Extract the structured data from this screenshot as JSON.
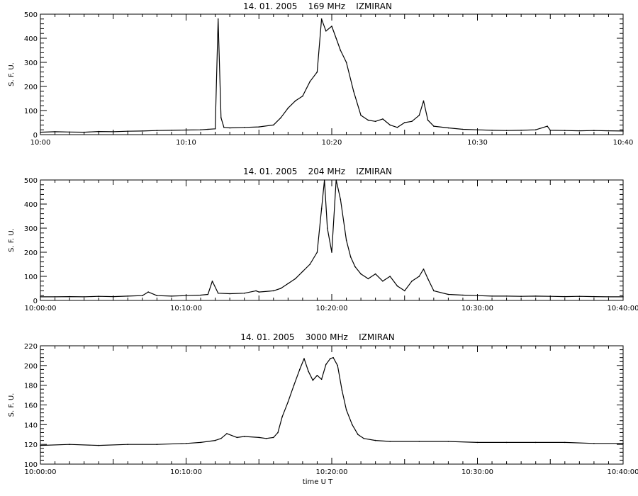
{
  "figure": {
    "background": "#ffffff",
    "line_color": "#000000",
    "xlabel": "time U T"
  },
  "chart_data": [
    {
      "type": "line",
      "title": "14. 01. 2005    169 MHz    IZMIRAN",
      "ylabel": "S. F. U.",
      "xlim": [
        "10:00",
        "10:40"
      ],
      "ylim": [
        0,
        500
      ],
      "yticks": [
        0,
        100,
        200,
        300,
        400,
        500
      ],
      "xticks": [
        "10:00",
        "10:10",
        "10:20",
        "10:30",
        "10:40"
      ],
      "x_unit": "minutes after 10:00 UT",
      "series": [
        {
          "x": [
            0,
            1,
            2,
            3,
            4,
            5,
            6,
            7,
            8,
            9,
            10,
            11,
            11.5,
            12,
            12.2,
            12.4,
            12.6,
            13,
            14,
            15,
            16,
            16.5,
            17,
            17.5,
            18,
            18.5,
            19,
            19.3,
            19.6,
            20,
            20.3,
            20.6,
            21,
            21.5,
            22,
            22.5,
            23,
            23.5,
            24,
            24.5,
            25,
            25.5,
            26,
            26.3,
            26.6,
            27,
            28,
            29,
            30,
            31,
            32,
            33,
            34,
            34.8,
            35,
            36,
            37,
            38,
            39,
            40
          ],
          "y": [
            10,
            12,
            11,
            10,
            13,
            12,
            14,
            15,
            17,
            18,
            19,
            20,
            22,
            24,
            480,
            70,
            30,
            28,
            30,
            32,
            40,
            70,
            110,
            140,
            160,
            220,
            260,
            480,
            430,
            450,
            400,
            350,
            300,
            180,
            80,
            60,
            55,
            65,
            40,
            30,
            50,
            55,
            80,
            140,
            60,
            35,
            28,
            22,
            20,
            18,
            17,
            18,
            20,
            35,
            18,
            17,
            16,
            17,
            16,
            15
          ]
        }
      ]
    },
    {
      "type": "line",
      "title": "14. 01. 2005    204 MHz    IZMIRAN",
      "ylabel": "S. F. U.",
      "xlim": [
        "10:00:00",
        "10:40:00"
      ],
      "ylim": [
        0,
        500
      ],
      "yticks": [
        0,
        100,
        200,
        300,
        400,
        500
      ],
      "xticks": [
        "10:00:00",
        "10:10:00",
        "10:20:00",
        "10:30:00",
        "10:40:00"
      ],
      "x_unit": "minutes after 10:00 UT",
      "series": [
        {
          "x": [
            0,
            1,
            2,
            3,
            4,
            5,
            6,
            7,
            7.4,
            8,
            9,
            10,
            11,
            11.5,
            11.8,
            12.2,
            13,
            14,
            14.8,
            15,
            16,
            16.5,
            17,
            17.5,
            18,
            18.5,
            19,
            19.3,
            19.5,
            19.7,
            20,
            20.3,
            20.6,
            21,
            21.3,
            21.6,
            22,
            22.5,
            23,
            23.5,
            24,
            24.5,
            25,
            25.5,
            26,
            26.3,
            26.6,
            27,
            28,
            29,
            30,
            31,
            32,
            33,
            34,
            35,
            36,
            37,
            38,
            39,
            40
          ],
          "y": [
            15,
            15,
            16,
            15,
            17,
            16,
            18,
            20,
            35,
            20,
            18,
            20,
            22,
            25,
            80,
            30,
            28,
            30,
            40,
            35,
            40,
            50,
            70,
            90,
            120,
            150,
            200,
            380,
            500,
            300,
            200,
            500,
            420,
            250,
            180,
            140,
            110,
            90,
            110,
            80,
            100,
            60,
            40,
            80,
            100,
            130,
            90,
            40,
            25,
            22,
            20,
            18,
            18,
            17,
            18,
            17,
            16,
            17,
            16,
            15,
            15
          ]
        }
      ]
    },
    {
      "type": "line",
      "title": "14. 01. 2005    3000 MHz    IZMIRAN",
      "ylabel": "S. F. U.",
      "xlabel": "time U T",
      "xlim": [
        "10:00:00",
        "10:40:00"
      ],
      "ylim": [
        100,
        220
      ],
      "yticks": [
        100,
        120,
        140,
        160,
        180,
        200,
        220
      ],
      "xticks": [
        "10:00:00",
        "10:10:00",
        "10:20:00",
        "10:30:00",
        "10:40:00"
      ],
      "x_unit": "minutes after 10:00 UT",
      "series": [
        {
          "x": [
            0,
            2,
            4,
            6,
            8,
            10,
            11,
            12,
            12.4,
            12.8,
            13.5,
            14,
            15,
            15.5,
            16,
            16.3,
            16.6,
            17,
            17.4,
            17.8,
            18.1,
            18.4,
            18.7,
            19,
            19.3,
            19.6,
            19.9,
            20.1,
            20.4,
            20.7,
            21,
            21.4,
            21.8,
            22.2,
            23,
            24,
            26,
            28,
            30,
            32,
            34,
            36,
            38,
            40
          ],
          "y": [
            119,
            120,
            119,
            120,
            120,
            121,
            122,
            124,
            126,
            131,
            127,
            128,
            127,
            126,
            127,
            132,
            148,
            163,
            180,
            196,
            207,
            194,
            185,
            190,
            186,
            201,
            207,
            208,
            200,
            175,
            155,
            140,
            130,
            126,
            124,
            123,
            123,
            123,
            122,
            122,
            122,
            122,
            121,
            121
          ]
        }
      ]
    }
  ]
}
